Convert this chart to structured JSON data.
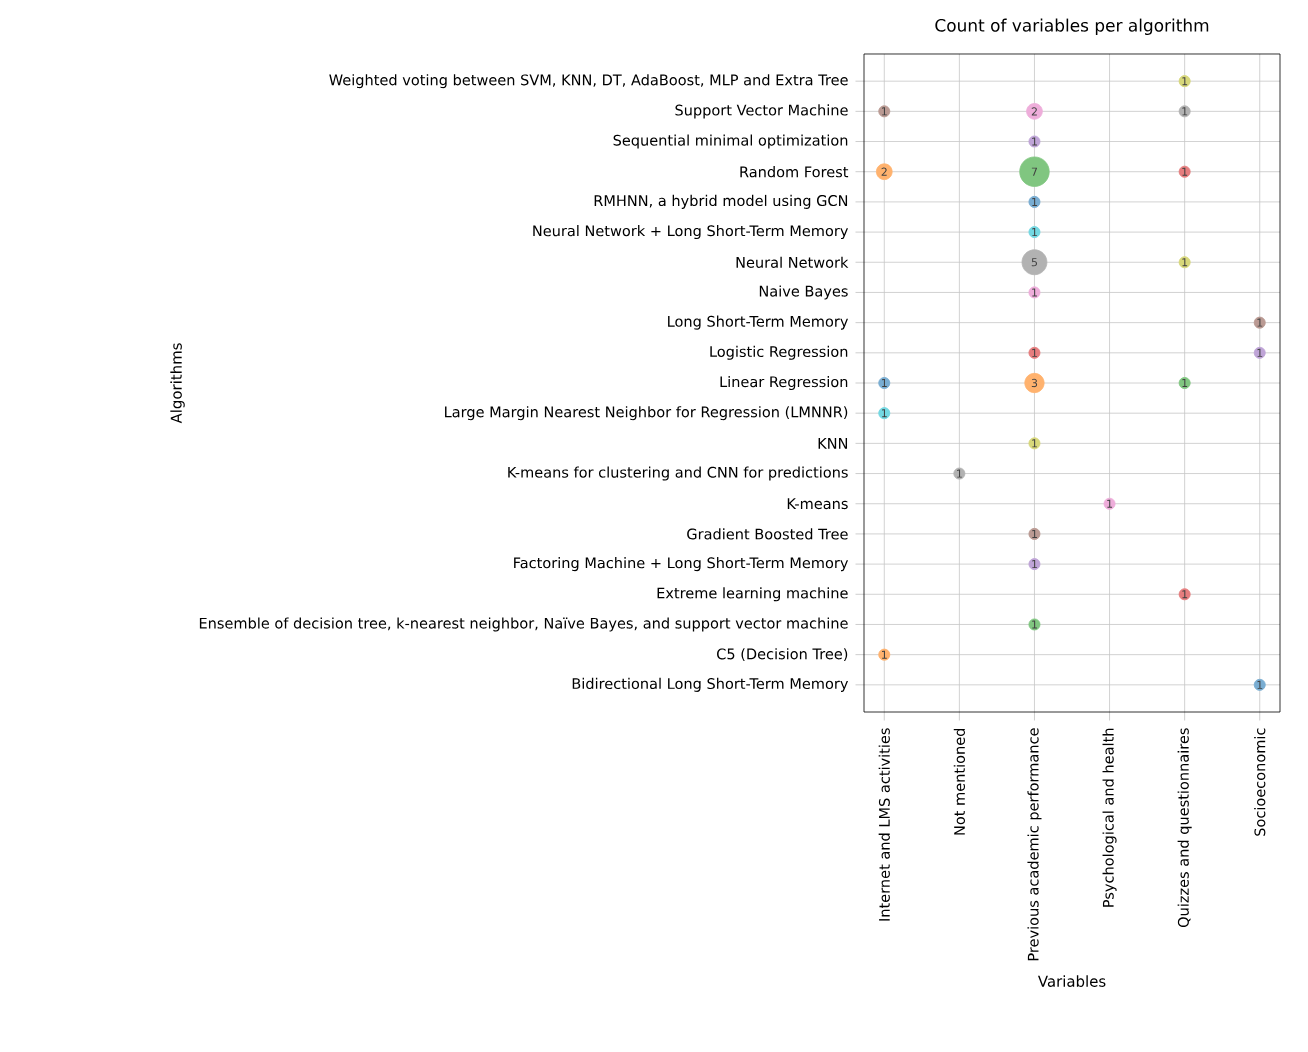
{
  "chart_data": {
    "type": "heatmap",
    "title": "Count of variables per algorithm",
    "xlabel": "Variables",
    "ylabel": "Algorithms",
    "categories": [
      "Internet and LMS activities",
      "Not mentioned",
      "Previous academic performance",
      "Psychological and health",
      "Quizzes and questionnaires",
      "Socioeconomic"
    ],
    "y_categories": [
      "Weighted voting between SVM, KNN, DT, AdaBoost, MLP and Extra Tree",
      "Support Vector Machine",
      "Sequential minimal optimization",
      "Random Forest",
      "RMHNN, a hybrid model using GCN",
      "Neural Network + Long Short-Term Memory",
      "Neural Network",
      "Naive Bayes",
      "Long Short-Term Memory",
      "Logistic Regression",
      "Linear Regression",
      "Large Margin Nearest Neighbor for Regression (LMNNR)",
      "KNN",
      "K-means for clustering and CNN for predictions",
      "K-means",
      "Gradient Boosted Tree",
      "Factoring Machine + Long Short-Term Memory",
      "Extreme learning machine",
      "Ensemble of decision tree, k-nearest neighbor, Naïve Bayes, and support vector machine",
      "C5 (Decision Tree)",
      "Bidirectional Long Short-Term Memory"
    ],
    "cells": [
      [
        null,
        null,
        null,
        null,
        1,
        null
      ],
      [
        1,
        null,
        2,
        null,
        1,
        null
      ],
      [
        null,
        null,
        1,
        null,
        null,
        null
      ],
      [
        2,
        null,
        7,
        null,
        1,
        null
      ],
      [
        null,
        null,
        1,
        null,
        null,
        null
      ],
      [
        null,
        null,
        1,
        null,
        null,
        null
      ],
      [
        null,
        null,
        5,
        null,
        1,
        null
      ],
      [
        null,
        null,
        1,
        null,
        null,
        null
      ],
      [
        null,
        null,
        null,
        null,
        null,
        1
      ],
      [
        null,
        null,
        1,
        null,
        null,
        1
      ],
      [
        1,
        null,
        3,
        null,
        1,
        null
      ],
      [
        1,
        null,
        null,
        null,
        null,
        null
      ],
      [
        null,
        null,
        1,
        null,
        null,
        null
      ],
      [
        null,
        1,
        null,
        null,
        null,
        null
      ],
      [
        null,
        null,
        null,
        1,
        null,
        null
      ],
      [
        null,
        null,
        1,
        null,
        null,
        null
      ],
      [
        null,
        null,
        1,
        null,
        null,
        null
      ],
      [
        null,
        null,
        null,
        null,
        1,
        null
      ],
      [
        null,
        null,
        1,
        null,
        null,
        null
      ],
      [
        1,
        null,
        null,
        null,
        null,
        null
      ],
      [
        null,
        null,
        null,
        null,
        null,
        1
      ]
    ],
    "colors": [
      "#d7d77a",
      "#ba9a93",
      "#eeadda",
      "#b2b2b2",
      "#bfa4d7",
      "#ffb26e",
      "#80c680",
      "#e67d7e",
      "#79add2",
      "#74d8e2",
      "#b2b2b2",
      "#d7d77a",
      "#eeadda",
      "#ba9a93",
      "#e67d7e",
      "#bfa4d7",
      "#79add2",
      "#ffb26e",
      "#80c680",
      "#74d8e2",
      "#d7d77a",
      "#b2b2b2",
      "#eeadda",
      "#ba9a93",
      "#bfa4d7",
      "#e67d7e",
      "#80c680",
      "#ffb26e",
      "#79add2"
    ],
    "data_labels": true,
    "grid": true
  }
}
